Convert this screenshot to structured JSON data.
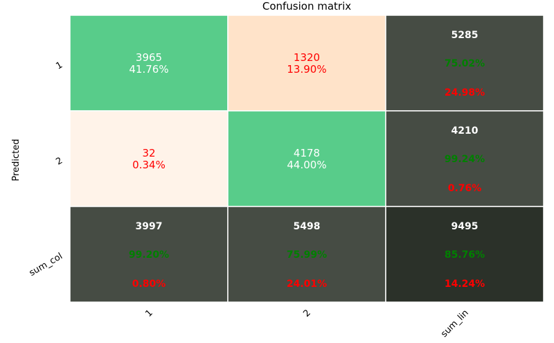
{
  "chart_data": {
    "type": "heatmap",
    "title": "Confusion matrix",
    "ylabel": "Predicted",
    "xlabel": "",
    "x_tick_labels": [
      "1",
      "2",
      "sum_lin"
    ],
    "y_tick_labels": [
      "1",
      "2",
      "sum_col"
    ],
    "matrix": [
      [
        {
          "count": "3965",
          "pct": "41.76%"
        },
        {
          "count": "1320",
          "pct": "13.90%"
        }
      ],
      [
        {
          "count": "32",
          "pct": "0.34%"
        },
        {
          "count": "4178",
          "pct": "44.00%"
        }
      ]
    ],
    "row_totals": [
      {
        "count": "5285",
        "correct": "75.02%",
        "error": "24.98%"
      },
      {
        "count": "4210",
        "correct": "99.24%",
        "error": "0.76%"
      }
    ],
    "col_totals": [
      {
        "count": "3997",
        "correct": "99.20%",
        "error": "0.80%"
      },
      {
        "count": "5498",
        "correct": "75.99%",
        "error": "24.01%"
      }
    ],
    "grand_total": {
      "count": "9495",
      "correct": "85.76%",
      "error": "14.24%"
    },
    "colors": {
      "diagonal": "#58cc8a",
      "off_diag_high": "#ffe3c9",
      "off_diag_low": "#fff3e9",
      "summary": "#464c44",
      "grand_total": "#2b3129",
      "text_on_green": "#ffffff",
      "text_on_light": "#ff0000",
      "summary_count": "#ffffff",
      "summary_correct": "#008000",
      "summary_error": "#ff0000"
    }
  }
}
